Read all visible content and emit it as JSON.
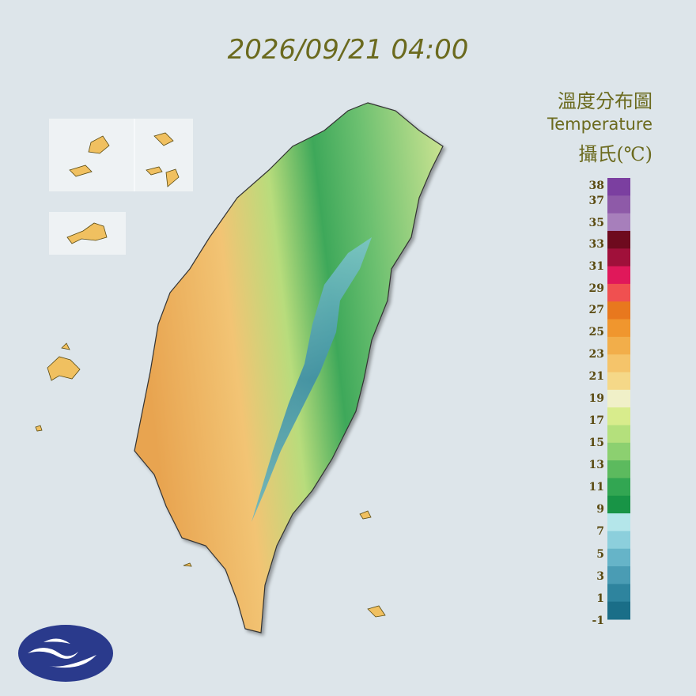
{
  "header": {
    "timestamp": "2026/09/21 04:00"
  },
  "legend": {
    "title_zh": "溫度分布圖",
    "title_en": "Temperature",
    "unit": "攝氏(℃)",
    "labels": [
      "38",
      "37",
      "35",
      "33",
      "31",
      "29",
      "27",
      "25",
      "23",
      "21",
      "19",
      "17",
      "15",
      "13",
      "11",
      "9",
      "7",
      "5",
      "3",
      "1",
      "-1"
    ],
    "colors": [
      "#7b3fa0",
      "#8e5aa8",
      "#a77fbb",
      "#6e0a1e",
      "#a0103a",
      "#e0185a",
      "#f05050",
      "#e8781e",
      "#f0962e",
      "#f2ae4a",
      "#f5c46a",
      "#f5d888",
      "#f0f0c8",
      "#d8ec8c",
      "#b4e07c",
      "#8cd070",
      "#5cba5e",
      "#32a652",
      "#189446",
      "#b4e6ea",
      "#8ccfdc",
      "#66b4c8",
      "#4a9cb4",
      "#2e849e",
      "#1a6e88"
    ]
  }
}
